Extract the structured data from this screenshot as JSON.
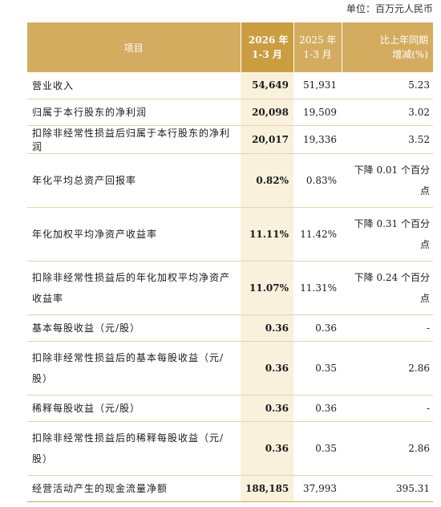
{
  "unit_label": "单位：百万元人民币",
  "header": {
    "item": "项目",
    "current_year": "2026 年",
    "current_period": "1-3 月",
    "prior_year": "2025 年",
    "prior_period": "1-3 月",
    "change_line1": "比上年同期",
    "change_line2": "增减(%)"
  },
  "rows": [
    {
      "label": "营业收入",
      "current": "54,649",
      "prior": "51,931",
      "change": "5.23"
    },
    {
      "label": "归属于本行股东的净利润",
      "current": "20,098",
      "prior": "19,509",
      "change": "3.02"
    },
    {
      "label": "扣除非经常性损益后归属于本行股东的净利润",
      "current": "20,017",
      "prior": "19,336",
      "change": "3.52"
    },
    {
      "label": "年化平均总资产回报率",
      "current": "0.82%",
      "prior": "0.83%",
      "change_line1": "下降 0.01 个百分",
      "change_line2": "点"
    },
    {
      "label": "年化加权平均净资产收益率",
      "current": "11.11%",
      "prior": "11.42%",
      "change_line1": "下降 0.31 个百分",
      "change_line2": "点"
    },
    {
      "label_line1": "扣除非经常性损益后的年化加权平均净资产",
      "label_line2": "收益率",
      "current": "11.07%",
      "prior": "11.31%",
      "change_line1": "下降 0.24 个百分",
      "change_line2": "点"
    },
    {
      "label": "基本每股收益（元/股）",
      "current": "0.36",
      "prior": "0.36",
      "change": "-"
    },
    {
      "label_line1": "扣除非经常性损益后的基本每股收益（元/",
      "label_line2": "股）",
      "current": "0.36",
      "prior": "0.35",
      "change": "2.86"
    },
    {
      "label": "稀释每股收益（元/股）",
      "current": "0.36",
      "prior": "0.36",
      "change": "-"
    },
    {
      "label_line1": "扣除非经常性损益后的稀释每股收益（元/",
      "label_line2": "股）",
      "current": "0.36",
      "prior": "0.35",
      "change": "2.86"
    },
    {
      "label": "经营活动产生的现金流量净额",
      "current": "188,185",
      "prior": "37,993",
      "change": "395.31"
    }
  ]
}
